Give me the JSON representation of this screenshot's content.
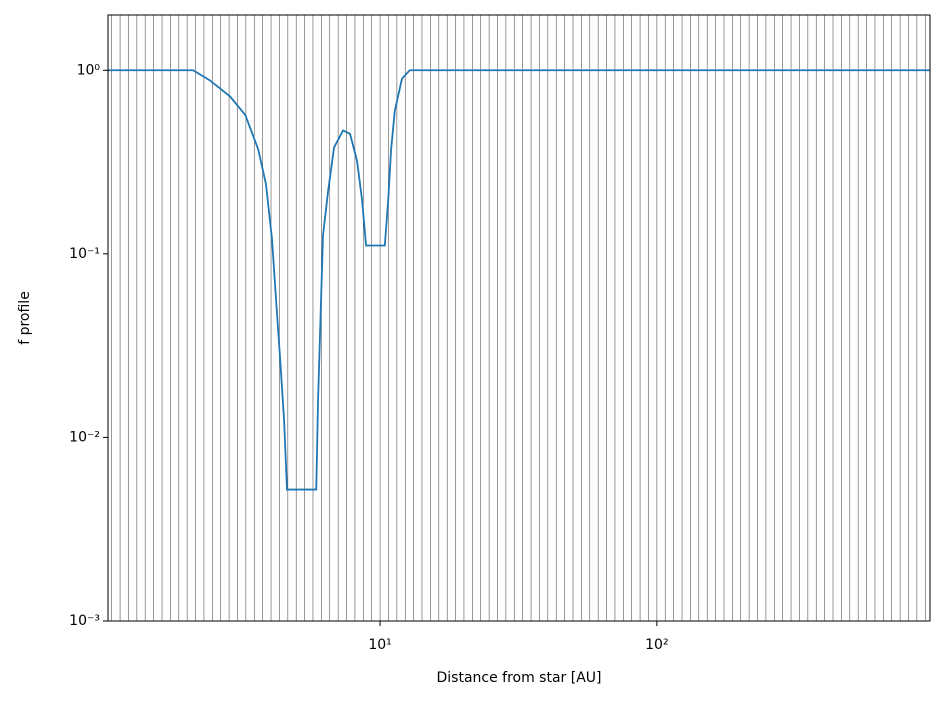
{
  "chart_data": {
    "type": "line",
    "xlabel": "Distance from star [AU]",
    "ylabel": "f profile",
    "xscale": "log",
    "yscale": "log",
    "xlim": [
      1.04,
      970
    ],
    "ylim": [
      0.001,
      2
    ],
    "xticks": [
      {
        "value": 10,
        "label": "10¹"
      },
      {
        "value": 100,
        "label": "10²"
      }
    ],
    "yticks": [
      {
        "value": 0.001,
        "label": "10⁻³"
      },
      {
        "value": 0.01,
        "label": "10⁻²"
      },
      {
        "value": 0.1,
        "label": "10⁻¹"
      },
      {
        "value": 1,
        "label": "10⁰"
      }
    ],
    "radial_grid": [
      1.072,
      1.15,
      1.233,
      1.322,
      1.417,
      1.52,
      1.63,
      1.748,
      1.874,
      2.009,
      2.154,
      2.31,
      2.477,
      2.656,
      2.848,
      3.053,
      3.274,
      3.511,
      3.765,
      4.037,
      4.329,
      4.642,
      4.977,
      5.337,
      5.722,
      6.136,
      6.579,
      7.055,
      7.565,
      8.111,
      8.697,
      9.326,
      10,
      10.72,
      11.5,
      12.33,
      13.22,
      14.17,
      15.2,
      16.3,
      17.48,
      18.74,
      20.09,
      21.54,
      23.1,
      24.77,
      26.56,
      28.48,
      30.53,
      32.74,
      35.11,
      37.65,
      40.37,
      43.29,
      46.42,
      49.77,
      53.37,
      57.22,
      61.36,
      65.79,
      70.55,
      75.65,
      81.11,
      86.97,
      93.26,
      100,
      107.2,
      115.0,
      123.3,
      132.2,
      141.7,
      152.0,
      163.0,
      174.8,
      187.4,
      200.9,
      215.4,
      231.0,
      247.7,
      265.6,
      284.8,
      305.3,
      327.4,
      351.1,
      376.5,
      403.7,
      432.9,
      464.2,
      497.7,
      533.7,
      572.2,
      613.6,
      657.9,
      705.5,
      756.5,
      811.1,
      869.7,
      932.6
    ],
    "grid_color": "#555555",
    "color": "#1f77b4",
    "x": [
      1.04,
      2.11,
      2.43,
      2.87,
      3.26,
      3.63,
      3.87,
      4.07,
      4.21,
      4.36,
      4.5,
      4.61,
      5.88,
      5.97,
      6.12,
      6.22,
      6.49,
      6.82,
      7.35,
      7.79,
      8.26,
      8.61,
      8.9,
      10.4,
      10.7,
      10.96,
      11.3,
      12.0,
      12.8,
      970
    ],
    "values": [
      1,
      1,
      0.88,
      0.72,
      0.57,
      0.37,
      0.24,
      0.12,
      0.056,
      0.026,
      0.0124,
      0.0052,
      0.0052,
      0.016,
      0.056,
      0.126,
      0.22,
      0.38,
      0.47,
      0.45,
      0.32,
      0.196,
      0.111,
      0.111,
      0.196,
      0.37,
      0.6,
      0.9,
      1,
      1
    ]
  }
}
